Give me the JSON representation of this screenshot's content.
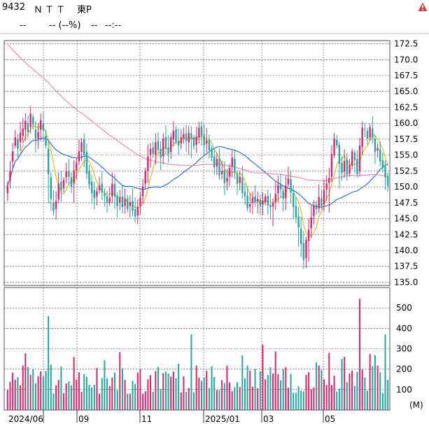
{
  "header": {
    "code": "9432",
    "name": "ＮＴＴ",
    "market": "東P",
    "price": "--",
    "change": "-- (--%)",
    "volume": "--",
    "time": "--:--"
  },
  "icons": {
    "warning": "warning-icon"
  },
  "colors": {
    "up": "#e0206a",
    "down": "#1ea8a0",
    "ma_short": "#d4c21a",
    "ma_mid": "#2a6fe0",
    "ma_long": "#ee88b8"
  },
  "chart_data": [
    {
      "type": "candlestick",
      "title": "",
      "x": [
        "2024/06",
        "09",
        "11",
        "2025/01",
        "03",
        "05"
      ],
      "ylim": [
        134.5,
        173.0
      ],
      "yticks": [
        "172.5",
        "170.0",
        "167.5",
        "165.0",
        "162.5",
        "160.0",
        "157.5",
        "155.0",
        "152.5",
        "150.0",
        "147.5",
        "145.0",
        "142.5",
        "140.0",
        "137.5",
        "135.0"
      ],
      "closes": [
        150.2,
        152.5,
        155.6,
        157.8,
        156.0,
        158.5,
        159.2,
        160.4,
        158.6,
        161.5,
        159.8,
        157.4,
        158.6,
        160.5,
        158.9,
        156.5,
        152.0,
        148.1,
        146.2,
        147.8,
        150.5,
        149.5,
        151.1,
        152.4,
        151.6,
        150.0,
        152.6,
        153.8,
        155.6,
        157.0,
        155.0,
        152.1,
        150.4,
        149.0,
        148.2,
        149.3,
        150.2,
        149.1,
        148.6,
        147.5,
        148.3,
        150.5,
        148.5,
        147.0,
        148.3,
        146.8,
        148.1,
        146.5,
        147.6,
        146.2,
        145.3,
        146.9,
        148.3,
        150.1,
        152.5,
        154.8,
        156.0,
        155.2,
        157.0,
        155.8,
        154.6,
        157.6,
        156.1,
        155.2,
        157.8,
        158.8,
        157.1,
        156.5,
        157.8,
        158.3,
        157.2,
        158.5,
        157.6,
        156.4,
        157.9,
        159.3,
        158.0,
        156.5,
        157.3,
        155.8,
        154.6,
        153.1,
        154.4,
        151.8,
        152.5,
        150.6,
        151.4,
        153.0,
        154.6,
        152.2,
        150.5,
        151.6,
        149.0,
        148.5,
        146.7,
        147.3,
        148.3,
        147.6,
        148.1,
        147.0,
        147.8,
        148.5,
        147.1,
        146.8,
        147.5,
        148.9,
        150.3,
        149.6,
        148.1,
        150.2,
        151.3,
        149.1,
        146.8,
        145.2,
        143.6,
        141.0,
        138.5,
        141.7,
        143.3,
        145.2,
        147.0,
        146.5,
        148.4,
        147.0,
        149.5,
        150.5,
        151.4,
        155.2,
        157.6,
        156.5,
        153.6,
        152.2,
        154.1,
        151.9,
        153.5,
        155.6,
        154.2,
        152.0,
        156.5,
        159.3,
        159.0,
        157.6,
        159.4,
        157.8,
        155.5,
        156.1,
        154.0,
        153.0,
        151.5,
        150.2
      ],
      "opens": [
        149.0,
        151.0,
        154.0,
        156.5,
        157.5,
        157.0,
        158.0,
        159.0,
        160.0,
        159.5,
        161.0,
        159.0,
        157.5,
        159.0,
        160.0,
        158.0,
        156.0,
        151.5,
        147.5,
        146.5,
        148.0,
        150.8,
        149.8,
        151.5,
        152.5,
        151.5,
        150.5,
        152.5,
        154.0,
        155.5,
        157.5,
        155.5,
        152.5,
        150.8,
        149.5,
        148.5,
        149.5,
        150.5,
        149.0,
        148.6,
        147.5,
        148.5,
        150.5,
        148.6,
        147.5,
        148.5,
        147.0,
        148.2,
        147.0,
        147.8,
        146.5,
        145.5,
        147.0,
        148.5,
        150.5,
        152.5,
        155.0,
        156.2,
        155.0,
        157.2,
        156.0,
        154.8,
        157.8,
        156.2,
        155.5,
        157.5,
        159.0,
        157.2,
        156.8,
        157.6,
        158.4,
        157.0,
        158.4,
        157.8,
        156.6,
        157.8,
        159.5,
        158.2,
        156.8,
        157.4,
        156.0,
        154.8,
        153.2,
        154.5,
        152.0,
        152.6,
        150.8,
        151.6,
        153.2,
        154.4,
        152.0,
        150.6,
        151.4,
        149.2,
        148.6,
        146.9,
        147.5,
        148.5,
        147.7,
        148.0,
        147.2,
        147.6,
        148.6,
        147.2,
        146.9,
        147.6,
        149.0,
        150.5,
        149.4,
        148.2,
        150.4,
        151.2,
        149.0,
        147.0,
        145.4,
        143.4,
        141.2,
        138.8,
        141.5,
        143.5,
        145.4,
        147.2,
        146.6,
        148.2,
        147.2,
        149.6,
        150.6,
        151.6,
        155.0,
        157.4,
        156.6,
        153.8,
        152.4,
        154.3,
        152.1,
        153.3,
        155.4,
        154.4,
        152.4,
        156.3,
        159.1,
        158.8,
        157.8,
        159.2,
        157.6,
        155.7,
        155.9,
        154.2,
        153.2,
        151.7
      ],
      "volume_ylim": [
        0,
        600
      ],
      "volume_yticks": [
        "500",
        "400",
        "300",
        "200",
        "100"
      ],
      "volume_unit": "(M)"
    }
  ]
}
